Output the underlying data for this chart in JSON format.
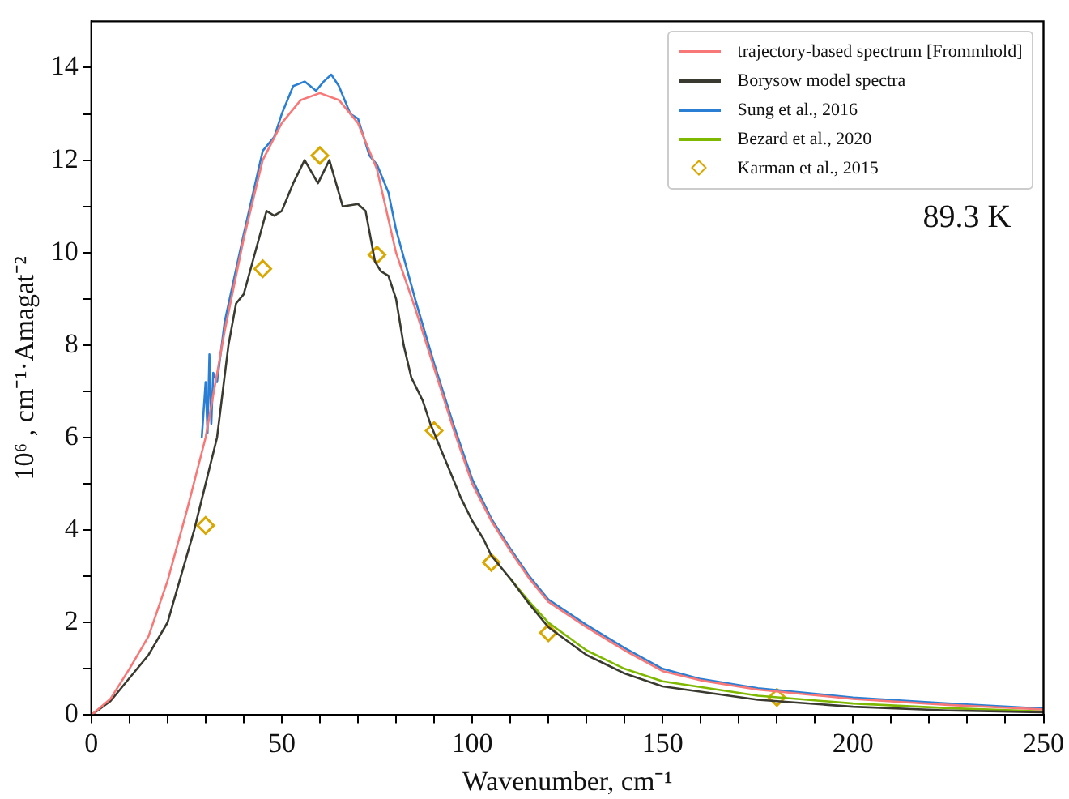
{
  "chart_data": {
    "type": "line",
    "xlabel": "Wavenumber, cm⁻¹",
    "ylabel": "10⁶ , cm⁻¹·Amagat⁻²",
    "xlim": [
      0,
      250
    ],
    "ylim": [
      0,
      15
    ],
    "xticks": [
      0,
      {
        "value": 10,
        "label": null
      },
      {
        "value": 20,
        "label": null
      },
      {
        "value": 30,
        "label": null
      },
      {
        "value": 40,
        "label": null
      },
      50,
      {
        "value": 60,
        "label": null
      },
      {
        "value": 70,
        "label": null
      },
      {
        "value": 80,
        "label": null
      },
      {
        "value": 90,
        "label": null
      },
      100,
      {
        "value": 110,
        "label": null
      },
      {
        "value": 120,
        "label": null
      },
      {
        "value": 130,
        "label": null
      },
      {
        "value": 140,
        "label": null
      },
      150,
      {
        "value": 160,
        "label": null
      },
      {
        "value": 170,
        "label": null
      },
      {
        "value": 180,
        "label": null
      },
      {
        "value": 190,
        "label": null
      },
      200,
      {
        "value": 210,
        "label": null
      },
      {
        "value": 220,
        "label": null
      },
      {
        "value": 230,
        "label": null
      },
      {
        "value": 240,
        "label": null
      },
      250
    ],
    "yticks": [
      0,
      {
        "value": 1,
        "label": null
      },
      2,
      {
        "value": 3,
        "label": null
      },
      4,
      {
        "value": 5,
        "label": null
      },
      6,
      {
        "value": 7,
        "label": null
      },
      8,
      {
        "value": 9,
        "label": null
      },
      10,
      {
        "value": 11,
        "label": null
      },
      12,
      {
        "value": 13,
        "label": null
      },
      14
    ],
    "grid": false,
    "legend": "top right",
    "annotations": [
      "89.3 K"
    ],
    "series": [
      {
        "name": "trajectory-based spectrum [Frommhold]",
        "type": "line",
        "color": "#f87878",
        "marker": "none",
        "x": [
          0,
          5,
          10,
          15,
          20,
          25,
          30,
          35,
          40,
          45,
          50,
          55,
          60,
          65,
          70,
          75,
          80,
          85,
          90,
          95,
          100,
          105,
          110,
          115,
          120,
          130,
          140,
          150,
          160,
          175,
          200,
          225,
          250
        ],
        "values": [
          0,
          0.35,
          1.0,
          1.7,
          2.9,
          4.4,
          6.0,
          8.3,
          10.3,
          12.0,
          12.8,
          13.3,
          13.45,
          13.3,
          12.8,
          11.8,
          10.0,
          8.8,
          7.5,
          6.2,
          5.0,
          4.2,
          3.55,
          2.95,
          2.45,
          1.9,
          1.4,
          0.95,
          0.75,
          0.55,
          0.35,
          0.22,
          0.12
        ]
      },
      {
        "name": "Borysow model spectra",
        "type": "line",
        "color": "#3a3a30",
        "marker": "none",
        "x": [
          0,
          5,
          10,
          15,
          20,
          27,
          30,
          33,
          36,
          38,
          40,
          43,
          46,
          48,
          50,
          53,
          56,
          59.5,
          62.5,
          66,
          70,
          72,
          74.5,
          76,
          78,
          80,
          82,
          84,
          87,
          89,
          91,
          93,
          95,
          97,
          100,
          103,
          105,
          110,
          115,
          120,
          130,
          140,
          150,
          175,
          200,
          225,
          250
        ],
        "values": [
          0,
          0.3,
          0.8,
          1.3,
          2.0,
          4.0,
          5.0,
          6.0,
          8.0,
          8.9,
          9.1,
          10.0,
          10.9,
          10.8,
          10.9,
          11.5,
          12.0,
          11.5,
          12.0,
          11.0,
          11.05,
          10.9,
          9.8,
          9.6,
          9.5,
          9.0,
          8.0,
          7.3,
          6.8,
          6.3,
          5.9,
          5.5,
          5.1,
          4.7,
          4.2,
          3.8,
          3.45,
          2.95,
          2.4,
          1.9,
          1.3,
          0.9,
          0.62,
          0.33,
          0.18,
          0.1,
          0.06
        ]
      },
      {
        "name": "Sung et al., 2016",
        "type": "line",
        "color": "#2a7fd4",
        "marker": "none",
        "x": [
          29,
          30,
          30.5,
          31,
          31.5,
          32,
          33,
          35,
          40,
          45,
          48,
          50,
          53,
          56,
          59,
          61,
          63,
          65,
          68,
          70,
          73,
          75,
          78,
          80,
          85,
          90,
          95,
          100,
          105,
          110,
          115,
          120,
          130,
          140,
          150,
          160,
          175,
          200,
          225,
          250
        ],
        "values": [
          6.0,
          7.2,
          6.1,
          7.8,
          6.3,
          7.4,
          7.2,
          8.5,
          10.4,
          12.2,
          12.5,
          13.0,
          13.6,
          13.7,
          13.5,
          13.7,
          13.85,
          13.6,
          13.0,
          12.9,
          12.1,
          11.9,
          11.3,
          10.5,
          9.0,
          7.6,
          6.3,
          5.1,
          4.25,
          3.6,
          3.0,
          2.5,
          1.95,
          1.45,
          1.0,
          0.78,
          0.58,
          0.38,
          0.25,
          0.14
        ]
      },
      {
        "name": "Bezard et al., 2020",
        "type": "line",
        "color": "#7fb800",
        "marker": "none",
        "x": [
          110,
          115,
          120,
          130,
          140,
          150,
          175,
          200,
          225,
          250
        ],
        "values": [
          2.95,
          2.45,
          2.0,
          1.4,
          1.0,
          0.73,
          0.42,
          0.25,
          0.15,
          0.08
        ]
      },
      {
        "name": "Karman et al., 2015",
        "type": "scatter",
        "color": "#d9a800",
        "marker": "diamond",
        "x": [
          30,
          45,
          60,
          75,
          90,
          105,
          120,
          180
        ],
        "values": [
          4.1,
          9.65,
          12.1,
          9.95,
          6.15,
          3.3,
          1.78,
          0.38
        ]
      }
    ]
  }
}
